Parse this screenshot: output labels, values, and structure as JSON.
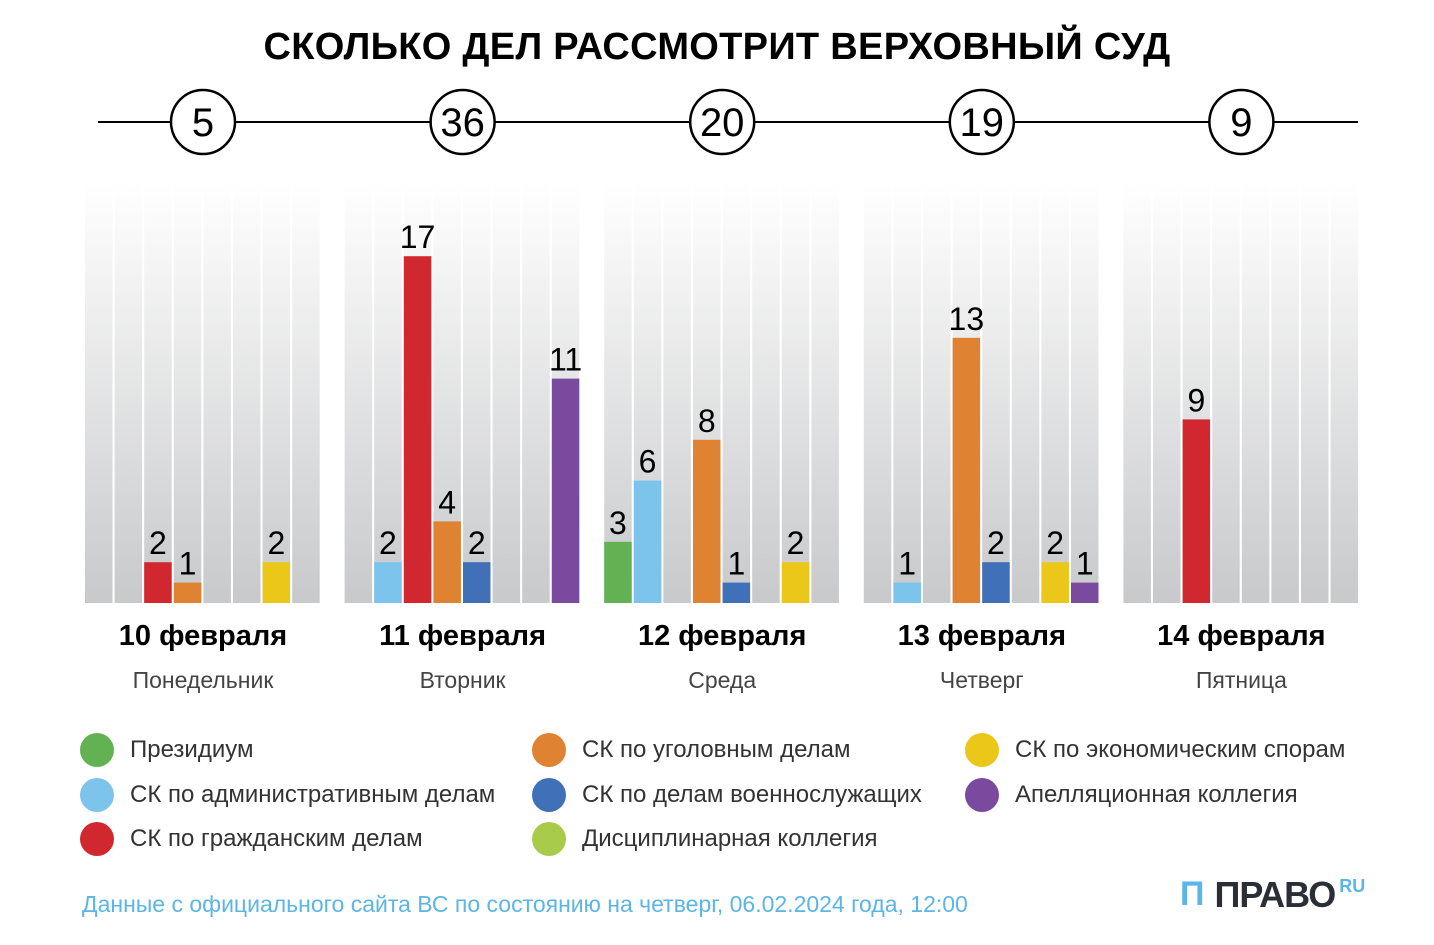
{
  "chart_data": {
    "type": "bar",
    "title": "СКОЛЬКО ДЕЛ РАССМОТРИТ ВЕРХОВНЫЙ СУД",
    "categories": [
      "10 февраля",
      "11 февраля",
      "12 февраля",
      "13 февраля",
      "14 февраля"
    ],
    "weekdays": [
      "Понедельник",
      "Вторник",
      "Среда",
      "Четверг",
      "Пятница"
    ],
    "totals": [
      5,
      36,
      20,
      19,
      9
    ],
    "series": [
      {
        "name": "Президиум",
        "color": "#62b254",
        "values": [
          0,
          0,
          3,
          0,
          0
        ]
      },
      {
        "name": "СК по административным делам",
        "color": "#7cc4ec",
        "values": [
          0,
          2,
          6,
          1,
          0
        ]
      },
      {
        "name": "СК по гражданским делам",
        "color": "#d1282f",
        "values": [
          2,
          17,
          0,
          0,
          9
        ]
      },
      {
        "name": "СК по уголовным делам",
        "color": "#df8231",
        "values": [
          1,
          4,
          8,
          13,
          0
        ]
      },
      {
        "name": "СК по делам военнослужащих",
        "color": "#3f70b8",
        "values": [
          0,
          2,
          1,
          2,
          0
        ]
      },
      {
        "name": "Дисциплинарная коллегия",
        "color": "#a8cc4a",
        "values": [
          0,
          0,
          0,
          0,
          0
        ]
      },
      {
        "name": "СК по экономическим спорам",
        "color": "#eac719",
        "values": [
          2,
          0,
          2,
          2,
          0
        ]
      },
      {
        "name": "Апелляционная коллегия",
        "color": "#7a4a9e",
        "values": [
          0,
          11,
          0,
          1,
          0
        ]
      }
    ],
    "legend_order": [
      0,
      3,
      6,
      1,
      4,
      7,
      2,
      5
    ],
    "grid": false,
    "legend_placement": "bottom"
  },
  "footnote": "Данные с официального сайта ВС по состоянию на четверг, 06.02.2024 года, 12:00",
  "logo": {
    "mark": "П",
    "word": "ПРАВО",
    "suffix": "RU"
  }
}
